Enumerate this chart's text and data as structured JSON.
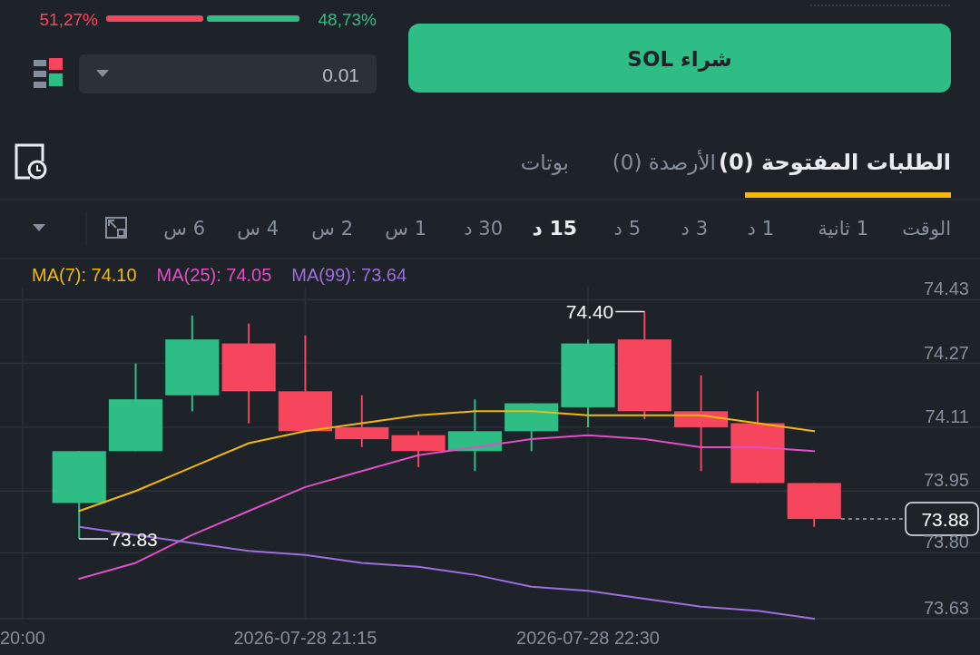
{
  "chart_data": {
    "type": "candlestick",
    "x": [
      "2026-07-28T20:15",
      "2026-07-28T20:30",
      "2026-07-28T20:45",
      "2026-07-28T21:00",
      "2026-07-28T21:15",
      "2026-07-28T21:30",
      "2026-07-28T21:45",
      "2026-07-28T22:00",
      "2026-07-28T22:15",
      "2026-07-28T22:30",
      "2026-07-28T22:45",
      "2026-07-28T23:00",
      "2026-07-28T23:15",
      "2026-07-28T23:30"
    ],
    "ohlc": [
      [
        73.92,
        74.05,
        73.83,
        74.05
      ],
      [
        74.05,
        74.27,
        74.05,
        74.18
      ],
      [
        74.19,
        74.39,
        74.15,
        74.33
      ],
      [
        74.32,
        74.37,
        74.12,
        74.2
      ],
      [
        74.2,
        74.34,
        74.1,
        74.1
      ],
      [
        74.11,
        74.19,
        74.06,
        74.08
      ],
      [
        74.09,
        74.1,
        74.01,
        74.05
      ],
      [
        74.05,
        74.18,
        74.0,
        74.1
      ],
      [
        74.1,
        74.17,
        74.05,
        74.17
      ],
      [
        74.16,
        74.33,
        74.11,
        74.32
      ],
      [
        74.33,
        74.4,
        74.13,
        74.15
      ],
      [
        74.15,
        74.24,
        74.0,
        74.11
      ],
      [
        74.12,
        74.2,
        73.97,
        73.97
      ],
      [
        73.97,
        73.97,
        73.86,
        73.88
      ]
    ],
    "colors": [
      "#2ebd85",
      "#2ebd85",
      "#2ebd85",
      "#f6465d",
      "#f6465d",
      "#f6465d",
      "#f6465d",
      "#2ebd85",
      "#2ebd85",
      "#2ebd85",
      "#f6465d",
      "#f6465d",
      "#f6465d",
      "#f6465d"
    ],
    "series": [
      {
        "name": "MA(7): 74.10",
        "type": "line",
        "color": "#f0b90b",
        "values": [
          73.9,
          73.95,
          74.01,
          74.07,
          74.1,
          74.12,
          74.14,
          74.15,
          74.15,
          74.14,
          74.14,
          74.14,
          74.12,
          74.1
        ]
      },
      {
        "name": "MA(25): 74.05",
        "type": "line",
        "color": "#e04fc4",
        "values": [
          73.73,
          73.77,
          73.84,
          73.9,
          73.96,
          74.0,
          74.04,
          74.06,
          74.08,
          74.09,
          74.08,
          74.06,
          74.06,
          74.05
        ]
      },
      {
        "name": "MA(99): 73.64",
        "type": "line",
        "color": "#9b6fdc",
        "values": [
          73.86,
          73.84,
          73.82,
          73.8,
          73.79,
          73.77,
          73.76,
          73.74,
          73.71,
          73.7,
          73.68,
          73.66,
          73.65,
          73.63
        ]
      }
    ],
    "xlim": [
      "2026-07-28T19:54",
      "2026-07-29T00:14"
    ],
    "xticks": [
      {
        "value": "2026-07-28T20:00",
        "label": "20:00"
      },
      {
        "value": "2026-07-28T21:15",
        "label": "2026-07-28 21:15"
      },
      {
        "value": "2026-07-28T22:30",
        "label": "2026-07-28 22:30"
      }
    ],
    "ylim": [
      73.63,
      74.46
    ],
    "yticks": [
      74.43,
      74.27,
      74.11,
      73.95,
      {
        "value": 73.795,
        "label": "73.80"
      },
      73.63
    ],
    "grid": true,
    "legend": "top left",
    "ref_lines": [
      {
        "axis": "y",
        "value": 73.88,
        "label": "73.88",
        "line_style": "dashed",
        "color": "#aaaaaa"
      }
    ],
    "annotations": [
      "51,27%",
      "48,73%",
      "0.01",
      "شراء SOL",
      "الطلبات المفتوحة (0)",
      "الأرصدة (0)",
      "بوتات",
      "الوقت",
      "1 ثانية",
      "1 د",
      "3 د",
      "5 د",
      "15 د",
      "30 د",
      "1 س",
      "2 س",
      "4 س",
      "6 س",
      {
        "text": "74.40",
        "x": "2026-07-28T22:45",
        "y": 74.4
      },
      {
        "text": "73.83",
        "x": "2026-07-28T20:15",
        "y": 73.83
      }
    ]
  }
}
